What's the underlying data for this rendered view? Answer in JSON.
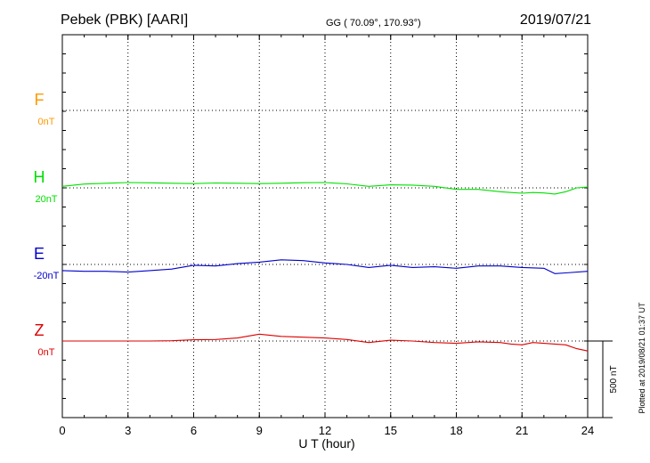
{
  "header": {
    "station": "Pebek (PBK)  [AARI]",
    "coords": "GG ( 70.09°, 170.93°)",
    "date": "2019/07/21"
  },
  "footer_note": "Plotted at 2019/08/21 01:37 UT",
  "scale_label": "500 nT",
  "chart_data": {
    "type": "line",
    "xlabel": "U T (hour)",
    "xlim": [
      0,
      24
    ],
    "xticks": [
      "0",
      "3",
      "6",
      "9",
      "12",
      "15",
      "18",
      "21",
      "24"
    ],
    "grid": true,
    "series": [
      {
        "name": "F",
        "baseline_label": "0nT",
        "color": "#ff9900",
        "baseline_level": 0,
        "x": [],
        "y": []
      },
      {
        "name": "H",
        "baseline_label": "20nT",
        "color": "#00e000",
        "baseline_level": 1,
        "x": [
          0,
          1,
          2,
          3,
          4,
          5,
          6,
          7,
          8,
          9,
          10,
          11,
          12,
          13,
          14,
          15,
          16,
          17,
          18,
          19,
          20,
          20.5,
          21,
          21.5,
          22,
          22.5,
          23,
          23.5,
          24
        ],
        "y": [
          10,
          25,
          30,
          35,
          33,
          30,
          28,
          32,
          30,
          28,
          30,
          34,
          35,
          26,
          10,
          20,
          18,
          10,
          -10,
          -10,
          -25,
          -30,
          -35,
          -30,
          -33,
          -40,
          -25,
          0,
          5
        ]
      },
      {
        "name": "E",
        "baseline_label": "-20nT",
        "color": "#0000cc",
        "baseline_level": 2,
        "x": [
          0,
          1,
          2,
          3,
          4,
          5,
          6,
          7,
          8,
          9,
          10,
          11,
          12,
          13,
          14,
          15,
          16,
          17,
          18,
          19,
          20,
          21,
          22,
          22.5,
          23,
          24
        ],
        "y": [
          -40,
          -45,
          -45,
          -50,
          -40,
          -30,
          -5,
          -10,
          5,
          15,
          30,
          25,
          10,
          0,
          -20,
          -5,
          -20,
          -15,
          -25,
          -10,
          -10,
          -20,
          -25,
          -60,
          -55,
          -45
        ]
      },
      {
        "name": "Z",
        "baseline_label": "0nT",
        "color": "#dd0000",
        "baseline_level": 3,
        "x": [
          0,
          1,
          2,
          3,
          4,
          5,
          6,
          7,
          8,
          9,
          10,
          11,
          12,
          13,
          14,
          15,
          16,
          17,
          18,
          19,
          20,
          20.5,
          21,
          21.5,
          22,
          22.5,
          23,
          23.5,
          24
        ],
        "y": [
          0,
          0,
          0,
          0,
          0,
          2,
          8,
          10,
          20,
          45,
          30,
          25,
          20,
          10,
          -10,
          5,
          0,
          -10,
          -15,
          -5,
          -10,
          -20,
          -25,
          -10,
          -15,
          -20,
          -25,
          -50,
          -65
        ]
      }
    ]
  }
}
